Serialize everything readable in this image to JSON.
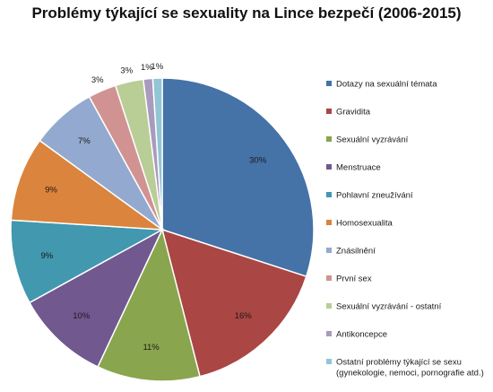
{
  "chart_data": {
    "type": "pie",
    "title": "Problémy týkající se sexuality na Lince bezpečí (2006-2015)",
    "legend_position": "right",
    "slices": [
      {
        "name": "Dotazy na sexuální témata",
        "value": 30,
        "label": "30%",
        "color": "#4572A7"
      },
      {
        "name": "Gravidita",
        "value": 16,
        "label": "16%",
        "color": "#AA4643"
      },
      {
        "name": "Sexuální vyzrávání",
        "value": 11,
        "label": "11%",
        "color": "#89A54E"
      },
      {
        "name": "Menstruace",
        "value": 10,
        "label": "10%",
        "color": "#71588F"
      },
      {
        "name": "Pohlavní zneužívání",
        "value": 9,
        "label": "9%",
        "color": "#4198AF"
      },
      {
        "name": "Homosexualita",
        "value": 9,
        "label": "9%",
        "color": "#DB843D"
      },
      {
        "name": "Znásilnění",
        "value": 7,
        "label": "7%",
        "color": "#93A9CF"
      },
      {
        "name": "První sex",
        "value": 3,
        "label": "3%",
        "color": "#D19392"
      },
      {
        "name": "Sexuální vyzrávání - ostatní",
        "value": 3,
        "label": "3%",
        "color": "#B9CD96"
      },
      {
        "name": "Antikoncepce",
        "value": 1,
        "label": "1%",
        "color": "#A99BBD"
      },
      {
        "name": "Ostatní problémy týkající se sexu",
        "name_line2": "(gynekologie, nemoci, pornografie atd.)",
        "value": 1,
        "label": "1%",
        "color": "#92C5D6"
      }
    ]
  }
}
